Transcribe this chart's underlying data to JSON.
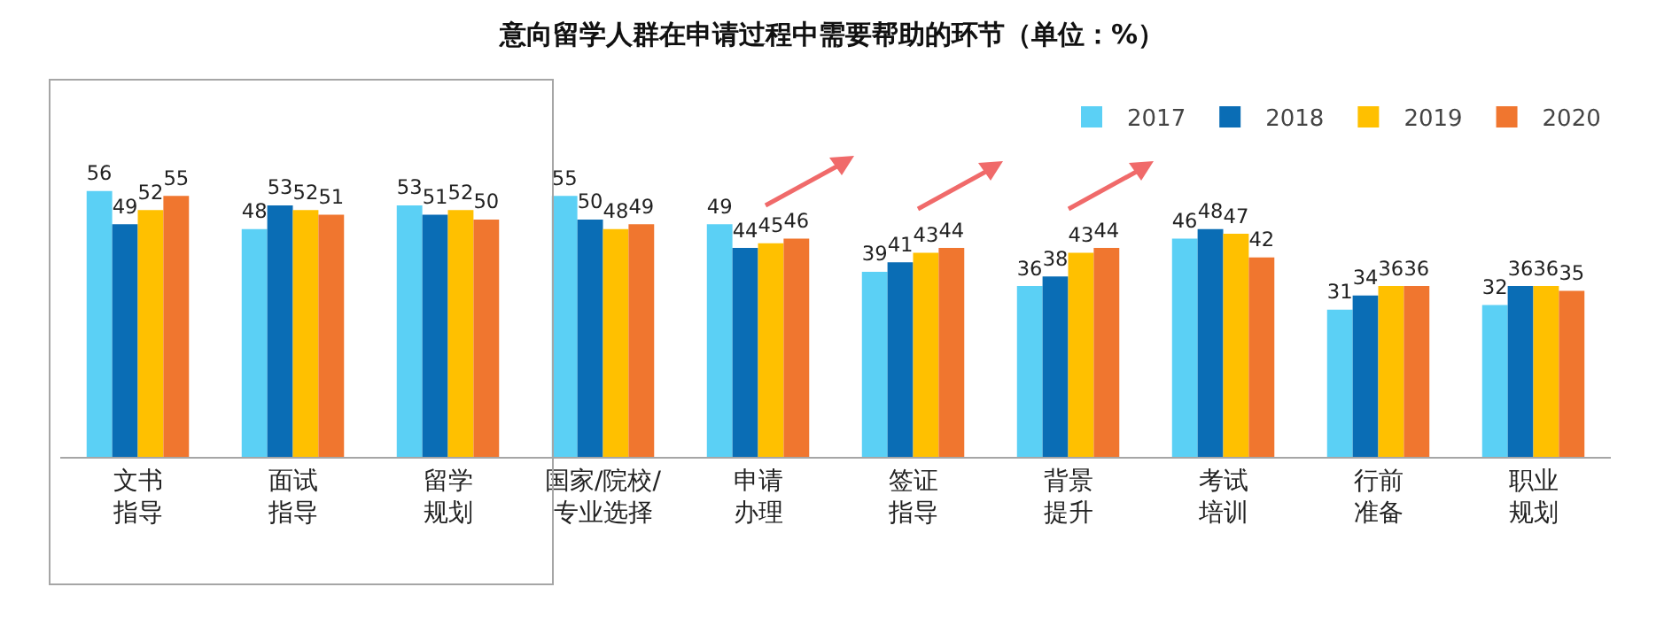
{
  "chart_data": {
    "type": "bar",
    "title": "意向留学人群在申请过程中需要帮助的环节（单位：%）",
    "categories": [
      "文书指导",
      "面试指导",
      "留学规划",
      "国家/院校/专业选择",
      "申请办理",
      "签证指导",
      "背景提升",
      "考试培训",
      "行前准备",
      "职业规划"
    ],
    "series": [
      {
        "name": "2017",
        "color": "#5bd0f5",
        "values": [
          56,
          48,
          53,
          55,
          49,
          39,
          36,
          46,
          31,
          32
        ]
      },
      {
        "name": "2018",
        "color": "#0a6db5",
        "values": [
          49,
          53,
          51,
          50,
          44,
          41,
          38,
          48,
          34,
          36
        ]
      },
      {
        "name": "2019",
        "color": "#ffc000",
        "values": [
          52,
          52,
          52,
          48,
          45,
          43,
          43,
          47,
          36,
          36
        ]
      },
      {
        "name": "2020",
        "color": "#f0762f",
        "values": [
          55,
          51,
          50,
          49,
          46,
          44,
          44,
          42,
          36,
          35
        ]
      }
    ],
    "data_labels": true,
    "legend": "top right",
    "grid": false,
    "tick_labels": "x"
  }
}
